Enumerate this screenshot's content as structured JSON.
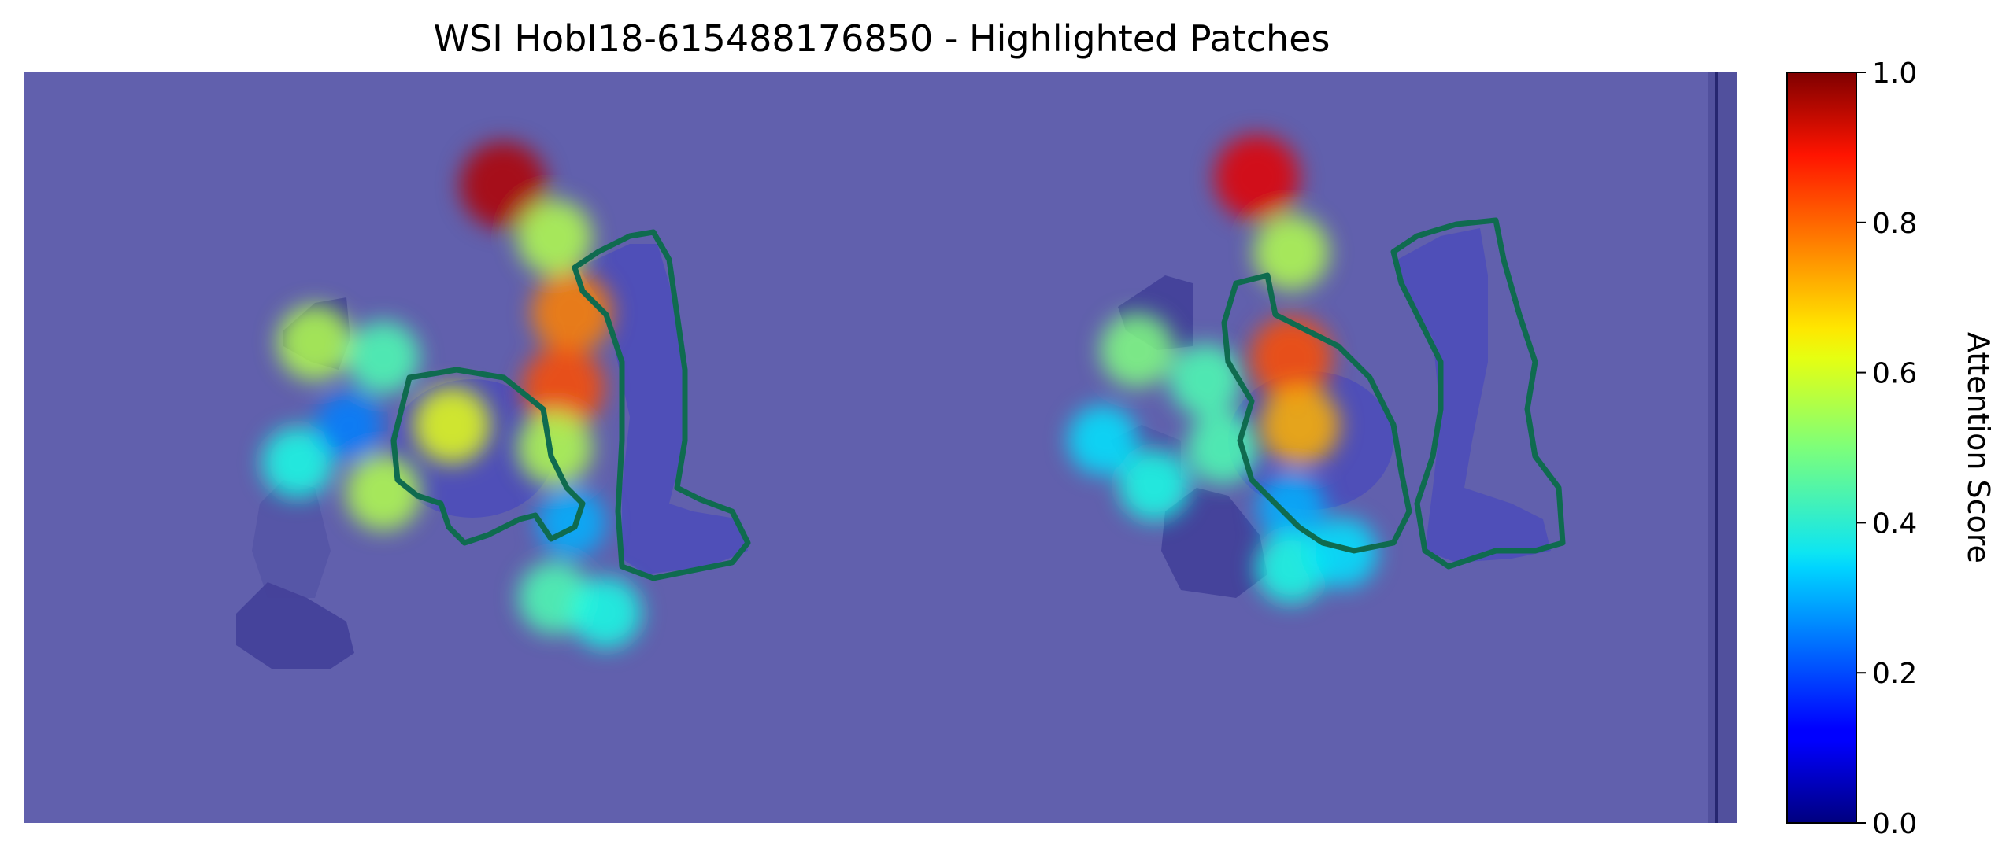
{
  "chart_data": {
    "type": "heatmap",
    "title": "WSI HobI18-615488176850 - Highlighted Patches",
    "colorbar": {
      "label": "Attention Score",
      "range": [
        0.0,
        1.0
      ],
      "ticks": [
        "0.0",
        "0.2",
        "0.4",
        "0.6",
        "0.8",
        "1.0"
      ],
      "colormap": "jet"
    },
    "background_color": "#6160ad",
    "contour_color": "#0f6b4f",
    "tissue_regions": [
      {
        "id": "left-round-section",
        "attention": [
          {
            "u": 0.17,
            "v": 0.36,
            "score": 0.55
          },
          {
            "u": 0.21,
            "v": 0.38,
            "score": 0.45
          },
          {
            "u": 0.25,
            "v": 0.47,
            "score": 0.6
          },
          {
            "u": 0.21,
            "v": 0.56,
            "score": 0.55
          },
          {
            "u": 0.16,
            "v": 0.52,
            "score": 0.4
          },
          {
            "u": 0.19,
            "v": 0.47,
            "score": 0.25
          }
        ]
      },
      {
        "id": "left-strip-section",
        "attention": [
          {
            "u": 0.28,
            "v": 0.15,
            "score": 0.95
          },
          {
            "u": 0.31,
            "v": 0.22,
            "score": 0.55
          },
          {
            "u": 0.32,
            "v": 0.32,
            "score": 0.75
          },
          {
            "u": 0.315,
            "v": 0.42,
            "score": 0.8
          },
          {
            "u": 0.31,
            "v": 0.5,
            "score": 0.55
          },
          {
            "u": 0.32,
            "v": 0.6,
            "score": 0.3
          },
          {
            "u": 0.31,
            "v": 0.7,
            "score": 0.45
          },
          {
            "u": 0.34,
            "v": 0.72,
            "score": 0.4
          }
        ]
      },
      {
        "id": "right-round-section",
        "attention": [
          {
            "u": 0.65,
            "v": 0.37,
            "score": 0.5
          },
          {
            "u": 0.69,
            "v": 0.41,
            "score": 0.45
          },
          {
            "u": 0.7,
            "v": 0.5,
            "score": 0.45
          },
          {
            "u": 0.66,
            "v": 0.55,
            "score": 0.4
          },
          {
            "u": 0.63,
            "v": 0.49,
            "score": 0.35
          }
        ]
      },
      {
        "id": "right-strip-section",
        "attention": [
          {
            "u": 0.72,
            "v": 0.14,
            "score": 0.9
          },
          {
            "u": 0.74,
            "v": 0.24,
            "score": 0.55
          },
          {
            "u": 0.74,
            "v": 0.38,
            "score": 0.8
          },
          {
            "u": 0.745,
            "v": 0.47,
            "score": 0.7
          },
          {
            "u": 0.74,
            "v": 0.58,
            "score": 0.3
          },
          {
            "u": 0.74,
            "v": 0.66,
            "score": 0.4
          },
          {
            "u": 0.77,
            "v": 0.64,
            "score": 0.35
          }
        ]
      }
    ]
  }
}
